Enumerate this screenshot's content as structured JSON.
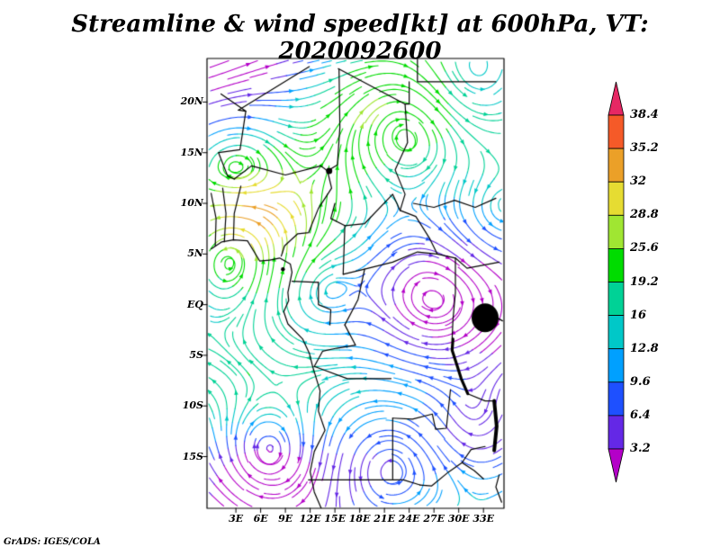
{
  "title": "Streamline & wind speed[kt] at 600hPa, VT: 2020092600",
  "credit": "GrADS: IGES/COLA",
  "axes": {
    "y_ticks": [
      "20N",
      "15N",
      "10N",
      "5N",
      "EQ",
      "5S",
      "10S",
      "15S"
    ],
    "x_ticks": [
      "3E",
      "6E",
      "9E",
      "12E",
      "15E",
      "18E",
      "21E",
      "24E",
      "27E",
      "30E",
      "33E"
    ]
  },
  "colorbar": {
    "labels_top_to_bottom": [
      "38.4",
      "35.2",
      "32",
      "28.8",
      "25.6",
      "19.2",
      "16",
      "12.8",
      "9.6",
      "6.4",
      "3.2"
    ],
    "levels_low_to_high": [
      3.2,
      6.4,
      9.6,
      12.8,
      16,
      19.2,
      25.6,
      28.8,
      32,
      35.2,
      38.4
    ],
    "colors_low_to_high": [
      "#b400c8",
      "#6428e6",
      "#1e50ff",
      "#00a0ff",
      "#00c8c8",
      "#00d296",
      "#00dc00",
      "#a0e632",
      "#e6dc32",
      "#eba028",
      "#f55a28",
      "#e62864"
    ]
  },
  "chart_data": {
    "type": "heatmap",
    "subtype": "streamline-vector-field-with-wind-speed-shading",
    "title": "Streamline & wind speed[kt] at 600hPa, VT: 2020092600",
    "variable": "wind speed",
    "units": "kt",
    "pressure_level_hPa": 600,
    "valid_time": "2020092600",
    "x_axis": {
      "label": "longitude",
      "units": "degrees east",
      "tick_labels": [
        "3E",
        "6E",
        "9E",
        "12E",
        "15E",
        "18E",
        "21E",
        "24E",
        "27E",
        "30E",
        "33E"
      ],
      "approx_range": [
        0,
        35.5
      ]
    },
    "y_axis": {
      "label": "latitude",
      "units": "degrees north",
      "tick_labels": [
        "20N",
        "15N",
        "10N",
        "5N",
        "EQ",
        "5S",
        "10S",
        "15S"
      ],
      "approx_range": [
        -20.5,
        24.5
      ]
    },
    "color_scale": {
      "levels_kt": [
        3.2,
        6.4,
        9.6,
        12.8,
        16,
        19.2,
        25.6,
        28.8,
        32,
        35.2,
        38.4
      ],
      "colors_low_to_high": [
        "#b400c8",
        "#6428e6",
        "#1e50ff",
        "#00a0ff",
        "#00c8c8",
        "#00d296",
        "#00dc00",
        "#a0e632",
        "#e6dc32",
        "#eba028",
        "#f55a28",
        "#e62864"
      ],
      "orientation": "vertical",
      "extend_arrows": "both",
      "legend_position": "right"
    },
    "grid": false,
    "credit": "GrADS: IGES/COLA"
  }
}
